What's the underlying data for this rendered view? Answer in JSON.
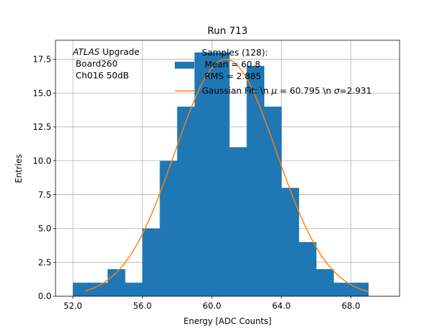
{
  "chart_data": {
    "type": "bar",
    "title": "Run 713",
    "xlabel": "Energy [ADC Counts]",
    "ylabel": "Entries",
    "xlim": [
      51.0,
      70.8
    ],
    "ylim": [
      0.0,
      18.9
    ],
    "grid": true,
    "legend_position": "top-right",
    "x_ticks": [
      52,
      56,
      60,
      64,
      68
    ],
    "x_tick_labels": [
      "52.0",
      "56.0",
      "60.0",
      "64.0",
      "68.0"
    ],
    "y_ticks": [
      0,
      2.5,
      5,
      7.5,
      10,
      12.5,
      15,
      17.5
    ],
    "y_tick_labels": [
      "0.0",
      "2.5",
      "5.0",
      "7.5",
      "10.0",
      "12.5",
      "15.0",
      "17.5"
    ],
    "bin_edges": [
      52,
      53,
      54,
      55,
      56,
      57,
      58,
      59,
      60,
      61,
      62,
      63,
      64,
      65,
      66,
      67,
      68,
      69
    ],
    "counts": [
      1,
      1,
      2,
      1,
      5,
      10,
      14,
      18,
      18,
      11,
      17,
      14,
      8,
      4,
      2,
      1,
      1
    ],
    "bar_color": "#1f77b4",
    "fit": {
      "mu": 60.795,
      "sigma": 2.931,
      "amplitude": 17.5,
      "x_range": [
        52.7,
        69.0
      ],
      "color": "#ff7f0e"
    },
    "annotation": {
      "experiment": "ATLAS",
      "experiment_suffix": " Upgrade",
      "line2": " Board260",
      "line3": " Ch016 50dB"
    },
    "legend": {
      "samples_line1": "Samples (128):",
      "samples_line2": " Mean = 60.8",
      "samples_line3": " RMS = 2.885",
      "fit_prefix": "Gaussian Fit: \\n ",
      "fit_mu_symbol": "μ",
      "fit_mid": " = 60.795 \\n ",
      "fit_sigma_symbol": "σ",
      "fit_suffix": "=2.931"
    }
  }
}
